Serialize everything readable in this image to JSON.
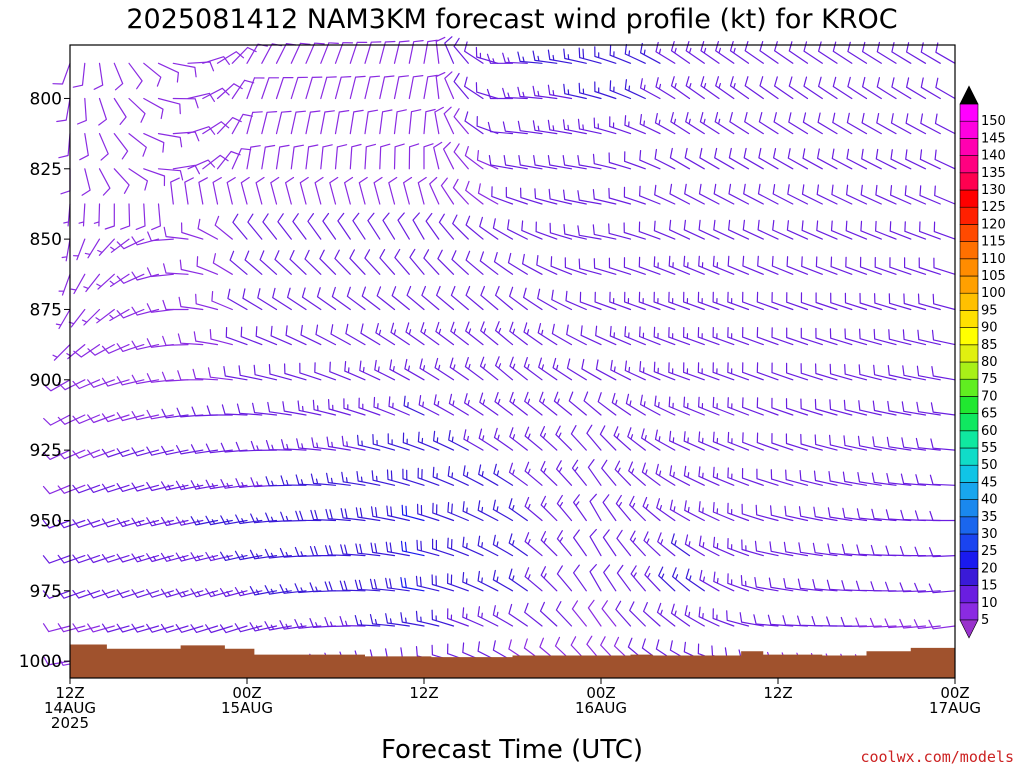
{
  "chart_data": {
    "type": "wind_barb_time_height",
    "title": "2025081412 NAM3KM forecast wind profile (kt) for KROC",
    "xlabel": "Forecast Time (UTC)",
    "ylabel": "",
    "credit": "coolwx.com/models",
    "credit_color": "#cc2222",
    "x_ticks": [
      {
        "hour": 0,
        "lines": [
          "12Z",
          "14AUG",
          "2025"
        ]
      },
      {
        "hour": 12,
        "lines": [
          "00Z",
          "15AUG"
        ]
      },
      {
        "hour": 24,
        "lines": [
          "12Z"
        ]
      },
      {
        "hour": 36,
        "lines": [
          "00Z",
          "16AUG"
        ]
      },
      {
        "hour": 48,
        "lines": [
          "12Z"
        ]
      },
      {
        "hour": 60,
        "lines": [
          "00Z",
          "17AUG"
        ]
      }
    ],
    "xlim_hours": [
      0,
      60
    ],
    "ylim_hpa": [
      1006,
      781
    ],
    "y_ticks": [
      "800",
      "825",
      "850",
      "875",
      "900",
      "925",
      "950",
      "975",
      "1000"
    ],
    "y_tick_values": [
      800,
      825,
      850,
      875,
      900,
      925,
      950,
      975,
      1000
    ],
    "surface_color": "#a0522d",
    "surface_pressure_hpa": [
      [
        0,
        994.1
      ],
      [
        2.5,
        995.6
      ],
      [
        5.5,
        995.6
      ],
      [
        7.5,
        994.4
      ],
      [
        10.5,
        995.6
      ],
      [
        12.5,
        997.7
      ],
      [
        20,
        998.3
      ],
      [
        24.5,
        998.6
      ],
      [
        30,
        998.0
      ],
      [
        33.5,
        998.0
      ],
      [
        38,
        997.7
      ],
      [
        39.5,
        998.0
      ],
      [
        45.5,
        996.5
      ],
      [
        47,
        997.7
      ],
      [
        51,
        998.0
      ],
      [
        54,
        996.5
      ],
      [
        57,
        995.3
      ],
      [
        60,
        994.7
      ]
    ],
    "colorbar": {
      "labels": [
        "5",
        "10",
        "15",
        "20",
        "25",
        "30",
        "35",
        "40",
        "45",
        "50",
        "55",
        "60",
        "65",
        "70",
        "75",
        "80",
        "85",
        "90",
        "95",
        "100",
        "105",
        "110",
        "115",
        "120",
        "125",
        "130",
        "135",
        "140",
        "145",
        "150"
      ],
      "colors": [
        "#8a2be2",
        "#6a1ee0",
        "#3a1ad8",
        "#1a1aef",
        "#1a44f0",
        "#1a66ee",
        "#1a88ee",
        "#18a6ee",
        "#10c4e6",
        "#10dcc8",
        "#10e8a0",
        "#10e860",
        "#20e830",
        "#60ee20",
        "#a8f018",
        "#e0f010",
        "#ffff00",
        "#ffe000",
        "#ffc000",
        "#ffa000",
        "#ff8c00",
        "#ff7000",
        "#ff4a00",
        "#ff2000",
        "#ff0000",
        "#ff0050",
        "#ff0080",
        "#ff00b0",
        "#ff00e0",
        "#ff00ff"
      ],
      "low_arrow_color": "#9932cc",
      "high_arrow_color": "#000000"
    },
    "time_step_hours": 1,
    "level_step_hpa": 12.5,
    "wind_grid": {
      "description": "rows: pressure levels (hPa); each row lists [direction_deg, speed_kt] for hours 0..60",
      "levels_hpa": [
        1000,
        987.5,
        975,
        962.5,
        950,
        937.5,
        925,
        912.5,
        900,
        887.5,
        875,
        862.5,
        850,
        837.5,
        825,
        812.5,
        800,
        787.5
      ]
    },
    "wind_profile_keyframes": [
      {
        "level": 1000,
        "hours": [
          0,
          12,
          24,
          30,
          36,
          42,
          48,
          60
        ],
        "dir": [
          260,
          250,
          280,
          300,
          320,
          300,
          270,
          260
        ],
        "spd": [
          8,
          10,
          12,
          10,
          8,
          12,
          10,
          8
        ]
      },
      {
        "level": 975,
        "hours": [
          0,
          12,
          24,
          30,
          36,
          42,
          48,
          60
        ],
        "dir": [
          250,
          255,
          280,
          300,
          330,
          310,
          280,
          265
        ],
        "spd": [
          10,
          14,
          20,
          16,
          10,
          16,
          12,
          10
        ]
      },
      {
        "level": 950,
        "hours": [
          0,
          12,
          24,
          30,
          36,
          42,
          48,
          60
        ],
        "dir": [
          250,
          260,
          285,
          300,
          330,
          300,
          285,
          270
        ],
        "spd": [
          10,
          16,
          20,
          16,
          12,
          14,
          12,
          10
        ]
      },
      {
        "level": 925,
        "hours": [
          0,
          12,
          24,
          30,
          36,
          42,
          48,
          60
        ],
        "dir": [
          245,
          265,
          290,
          305,
          320,
          295,
          290,
          275
        ],
        "spd": [
          9,
          12,
          16,
          14,
          12,
          14,
          12,
          10
        ]
      },
      {
        "level": 900,
        "hours": [
          0,
          12,
          24,
          30,
          36,
          42,
          48,
          60
        ],
        "dir": [
          240,
          280,
          300,
          310,
          300,
          290,
          290,
          280
        ],
        "spd": [
          8,
          10,
          14,
          14,
          12,
          14,
          12,
          10
        ]
      },
      {
        "level": 875,
        "hours": [
          0,
          12,
          24,
          30,
          36,
          42,
          48,
          60
        ],
        "dir": [
          210,
          300,
          310,
          310,
          290,
          290,
          290,
          285
        ],
        "spd": [
          6,
          10,
          12,
          12,
          12,
          14,
          12,
          10
        ]
      },
      {
        "level": 850,
        "hours": [
          0,
          12,
          24,
          30,
          36,
          42,
          48,
          60
        ],
        "dir": [
          190,
          320,
          330,
          300,
          280,
          295,
          295,
          290
        ],
        "spd": [
          6,
          10,
          10,
          10,
          10,
          12,
          12,
          10
        ]
      },
      {
        "level": 825,
        "hours": [
          0,
          12,
          24,
          30,
          36,
          42,
          48,
          60
        ],
        "dir": [
          180,
          10,
          0,
          280,
          280,
          300,
          300,
          295
        ],
        "spd": [
          8,
          8,
          8,
          10,
          12,
          12,
          12,
          10
        ]
      },
      {
        "level": 800,
        "hours": [
          0,
          12,
          24,
          30,
          36,
          42,
          48,
          60
        ],
        "dir": [
          190,
          20,
          10,
          270,
          285,
          305,
          305,
          300
        ],
        "spd": [
          8,
          8,
          8,
          12,
          16,
          14,
          12,
          10
        ]
      },
      {
        "level": 787.5,
        "hours": [
          0,
          12,
          24,
          30,
          36,
          42,
          48,
          60
        ],
        "dir": [
          200,
          30,
          10,
          270,
          285,
          305,
          305,
          300
        ],
        "spd": [
          8,
          8,
          8,
          14,
          18,
          14,
          12,
          10
        ]
      }
    ]
  }
}
